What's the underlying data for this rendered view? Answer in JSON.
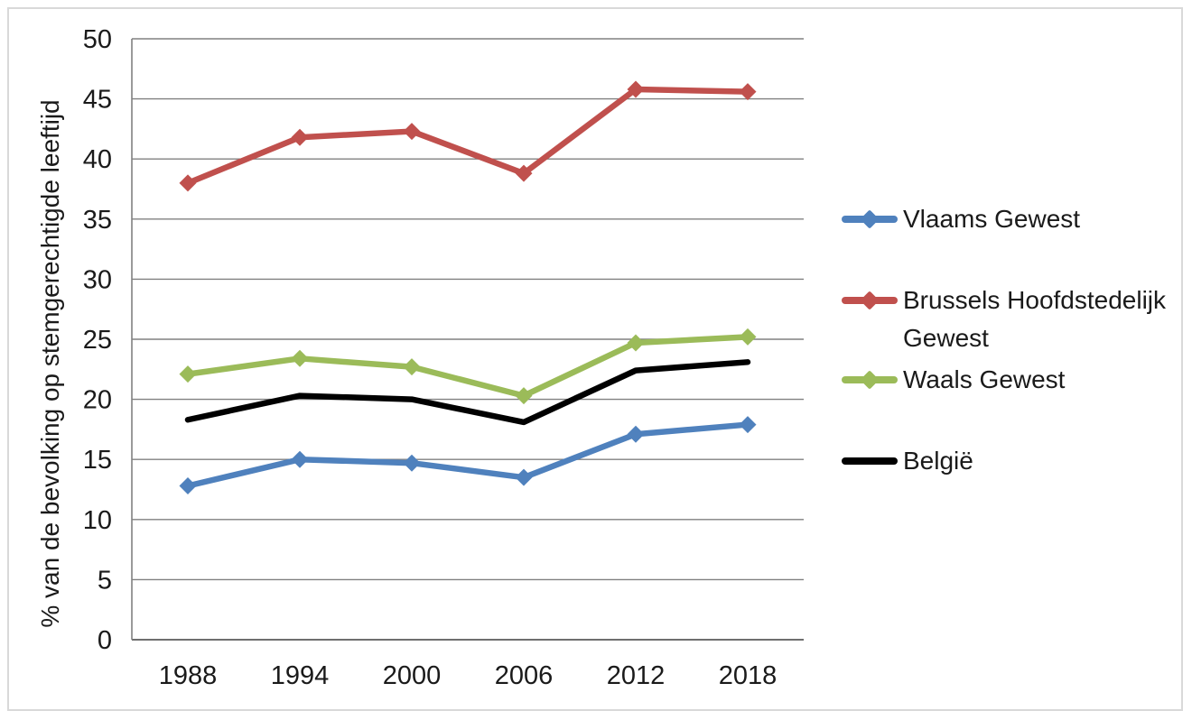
{
  "chart_data": {
    "type": "line",
    "ylabel": "% van de bevolking op stemgerechtigde leeftijd",
    "xlabel": "",
    "categories": [
      "1988",
      "1994",
      "2000",
      "2006",
      "2012",
      "2018"
    ],
    "ylim": [
      0,
      50
    ],
    "yticks": [
      0,
      5,
      10,
      15,
      20,
      25,
      30,
      35,
      40,
      45,
      50
    ],
    "grid": "horizontal",
    "legend_position": "right",
    "series": [
      {
        "name": "Vlaams Gewest",
        "color": "#4F81BD",
        "marker": "diamond",
        "values": [
          12.8,
          15.0,
          14.7,
          13.5,
          17.1,
          17.9
        ]
      },
      {
        "name": "Brussels Hoofdstedelijk Gewest",
        "color": "#C0504D",
        "marker": "diamond",
        "values": [
          38.0,
          41.8,
          42.3,
          38.8,
          45.8,
          45.6
        ]
      },
      {
        "name": "Waals Gewest",
        "color": "#9BBB59",
        "marker": "diamond",
        "values": [
          22.1,
          23.4,
          22.7,
          20.3,
          24.7,
          25.2
        ]
      },
      {
        "name": "België",
        "color": "#000000",
        "marker": "none",
        "values": [
          18.3,
          20.3,
          20.0,
          18.1,
          22.4,
          23.1
        ]
      }
    ],
    "colors": {
      "gridline": "#808080",
      "axis": "#6e6e6e",
      "text": "#1a1a1a",
      "border": "#d9d9d9",
      "background": "#ffffff"
    }
  }
}
